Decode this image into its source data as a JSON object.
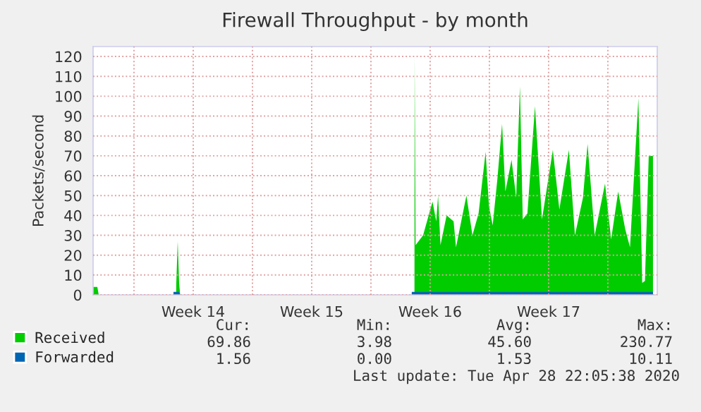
{
  "chart_data": {
    "type": "area",
    "title": "Firewall Throughput - by month",
    "ylabel": "Packets/second",
    "xlim": [
      "2020-03-26T14:00",
      "2020-04-28T22:05"
    ],
    "ylim": [
      0,
      125
    ],
    "xticks": [
      {
        "value": "2020-03-29",
        "label": null
      },
      {
        "value": "2020-04-01T12:00",
        "label": "Week 14"
      },
      {
        "value": "2020-04-05",
        "label": null
      },
      {
        "value": "2020-04-08T12:00",
        "label": "Week 15"
      },
      {
        "value": "2020-04-12",
        "label": null
      },
      {
        "value": "2020-04-15T12:00",
        "label": "Week 16"
      },
      {
        "value": "2020-04-19",
        "label": null
      },
      {
        "value": "2020-04-22T12:00",
        "label": "Week 17"
      },
      {
        "value": "2020-04-26",
        "label": null
      }
    ],
    "yticks": [
      0,
      10,
      20,
      30,
      40,
      50,
      60,
      70,
      80,
      90,
      100,
      110,
      120
    ],
    "grid": true,
    "legend": "bottom",
    "series": [
      {
        "name": "Received",
        "color": "#00cc00",
        "x": [
          "2020-03-26T14:00",
          "2020-03-26T20:00",
          "2020-03-26T22:00",
          "2020-03-31T11:45",
          "2020-03-31T12:00",
          "2020-03-31T14:00",
          "2020-03-31T16:00",
          "2020-03-31T17:30",
          "2020-04-14T13:45",
          "2020-04-14T14:00",
          "2020-04-14T15:20",
          "2020-04-15T02:00",
          "2020-04-15T15:20",
          "2020-04-15T20:40",
          "2020-04-15T23:15",
          "2020-04-16T02:40",
          "2020-04-16T11:20",
          "2020-04-16T21:15",
          "2020-04-17T00:40",
          "2020-04-17T15:25",
          "2020-04-18T00:00",
          "2020-04-18T08:40",
          "2020-04-18T18:40",
          "2020-04-18T23:20",
          "2020-04-19T04:40",
          "2020-04-19T11:15",
          "2020-04-19T18:00",
          "2020-04-19T22:40",
          "2020-04-20T07:25",
          "2020-04-20T14:00",
          "2020-04-20T19:20",
          "2020-04-20T23:20",
          "2020-04-21T05:55",
          "2020-04-21T16:40",
          "2020-04-22T02:35",
          "2020-04-22T18:00",
          "2020-04-23T03:15",
          "2020-04-23T16:45",
          "2020-04-24T01:20",
          "2020-04-24T12:45",
          "2020-04-24T19:15",
          "2020-04-25T05:20",
          "2020-04-25T20:00",
          "2020-04-26T04:40",
          "2020-04-26T14:40",
          "2020-04-27T00:40",
          "2020-04-27T07:25",
          "2020-04-27T19:20",
          "2020-04-27T23:20",
          "2020-04-28T00:45",
          "2020-04-28T04:35",
          "2020-04-28T10:00",
          "2020-04-28T16:00"
        ],
        "values": [
          4,
          4,
          0,
          0,
          6,
          27,
          6,
          0,
          0,
          120,
          25,
          30,
          47,
          37,
          50,
          25,
          40,
          37,
          24,
          50,
          30,
          41,
          72,
          45,
          35,
          58,
          86,
          52,
          68,
          49,
          105,
          38,
          41,
          95,
          38,
          73,
          43,
          73,
          30,
          49,
          76,
          30,
          56,
          28,
          52,
          33,
          24,
          99,
          30,
          6,
          7,
          70,
          70
        ]
      },
      {
        "name": "Forwarded",
        "color": "#0066b3",
        "x": [
          "2020-03-31T08:00",
          "2020-03-31T16:00",
          "2020-03-31T17:30",
          "2020-04-14T09:45",
          "2020-04-14T10:00",
          "2020-04-28T16:00"
        ],
        "values": [
          1.5,
          1.5,
          0,
          0,
          1.5,
          1.5
        ]
      }
    ],
    "annotations": [
      "Cur:",
      "Min:",
      "Avg:",
      "Max:",
      "69.86",
      "3.98",
      "45.60",
      "230.77",
      "1.56",
      "0.00",
      "1.53",
      "10.11",
      "Last update: Tue Apr 28 22:05:38 2020"
    ]
  }
}
